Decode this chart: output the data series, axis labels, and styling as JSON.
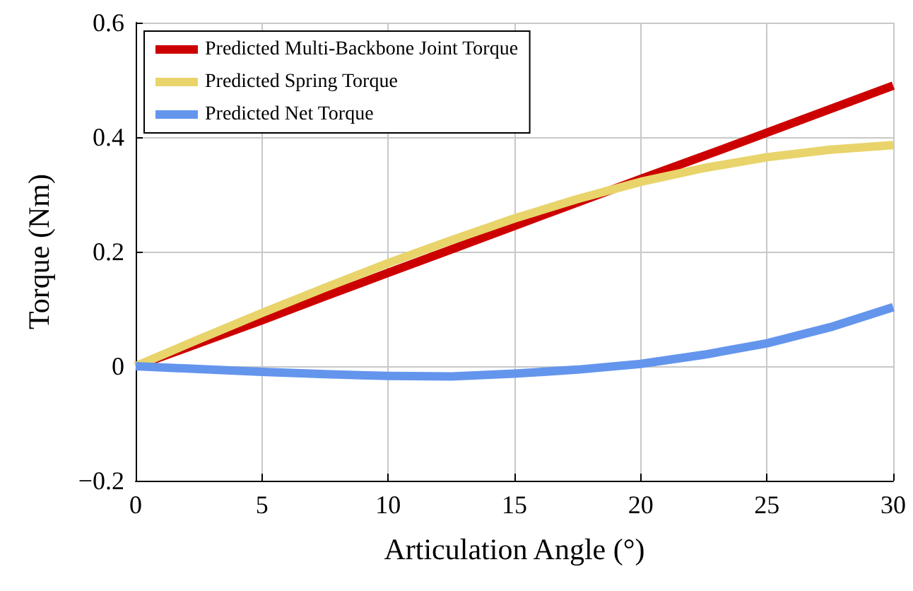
{
  "chart_data": {
    "type": "line",
    "xlabel": "Articulation Angle (°)",
    "ylabel": "Torque (Nm)",
    "x": [
      0,
      2.5,
      5,
      7.5,
      10,
      12.5,
      15,
      17.5,
      20,
      22.5,
      25,
      27.5,
      30
    ],
    "series": [
      {
        "name": "Predicted Multi-Backbone Joint Torque",
        "color": "#cc0000",
        "values": [
          0,
          0.04,
          0.08,
          0.122,
          0.163,
          0.204,
          0.245,
          0.286,
          0.327,
          0.367,
          0.408,
          0.449,
          0.49
        ]
      },
      {
        "name": "Predicted Spring Torque",
        "color": "#e8d46a",
        "values": [
          0,
          0.047,
          0.093,
          0.137,
          0.18,
          0.22,
          0.258,
          0.292,
          0.322,
          0.346,
          0.365,
          0.378,
          0.386
        ]
      },
      {
        "name": "Predicted Net Torque",
        "color": "#6495ed",
        "values": [
          0,
          -0.005,
          -0.01,
          -0.014,
          -0.017,
          -0.018,
          -0.013,
          -0.006,
          0.004,
          0.02,
          0.04,
          0.068,
          0.103
        ]
      }
    ],
    "xlim": [
      0,
      30
    ],
    "xticks": [
      0,
      5,
      10,
      15,
      20,
      25,
      30
    ],
    "ylim": [
      -0.2,
      0.6
    ],
    "yticks": [
      {
        "value": -0.2,
        "label": "−0.2"
      },
      0,
      0.2,
      0.4,
      0.6
    ],
    "grid": true,
    "legend": "top left",
    "marker": "none",
    "line_style": "solid"
  }
}
